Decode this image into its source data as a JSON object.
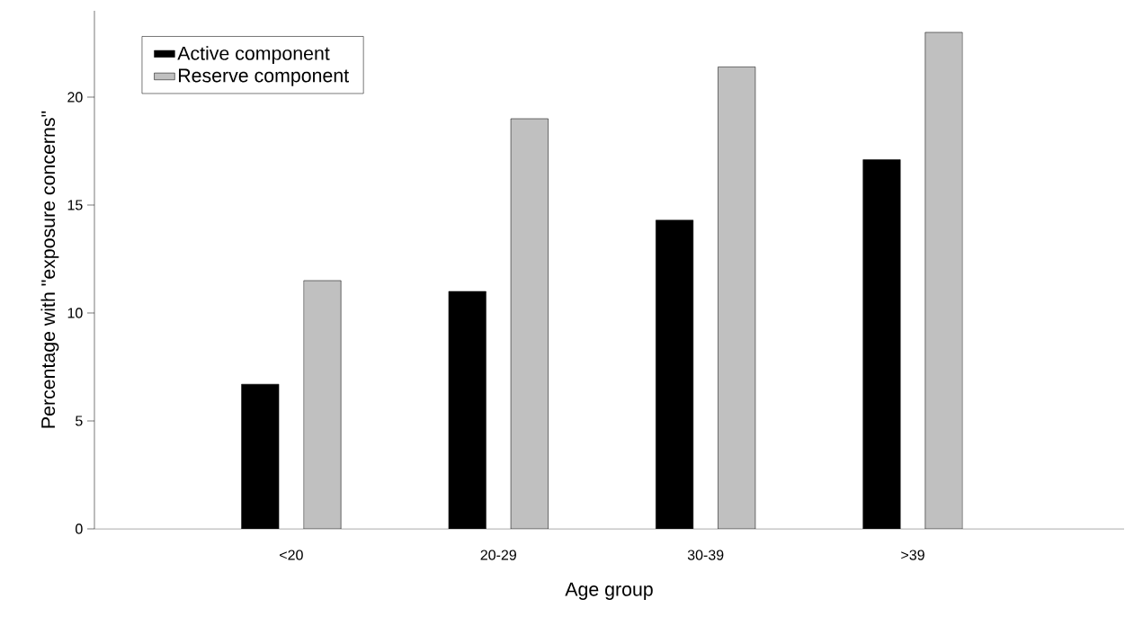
{
  "chart_data": {
    "type": "bar",
    "xlabel": "Age group",
    "ylabel": "Percentage with \"exposure concerns\"",
    "categories": [
      "<20",
      "20-29",
      "30-39",
      ">39"
    ],
    "series": [
      {
        "name": "Active component",
        "color": "#000000",
        "values": [
          6.7,
          11.0,
          14.3,
          17.1
        ]
      },
      {
        "name": "Reserve component",
        "color": "#c0c0c0",
        "values": [
          11.5,
          19.0,
          21.4,
          23.0
        ]
      }
    ],
    "ylim": [
      0,
      24
    ],
    "yticks": [
      0,
      5,
      10,
      15,
      20
    ],
    "grid": false,
    "legend": "top left"
  }
}
